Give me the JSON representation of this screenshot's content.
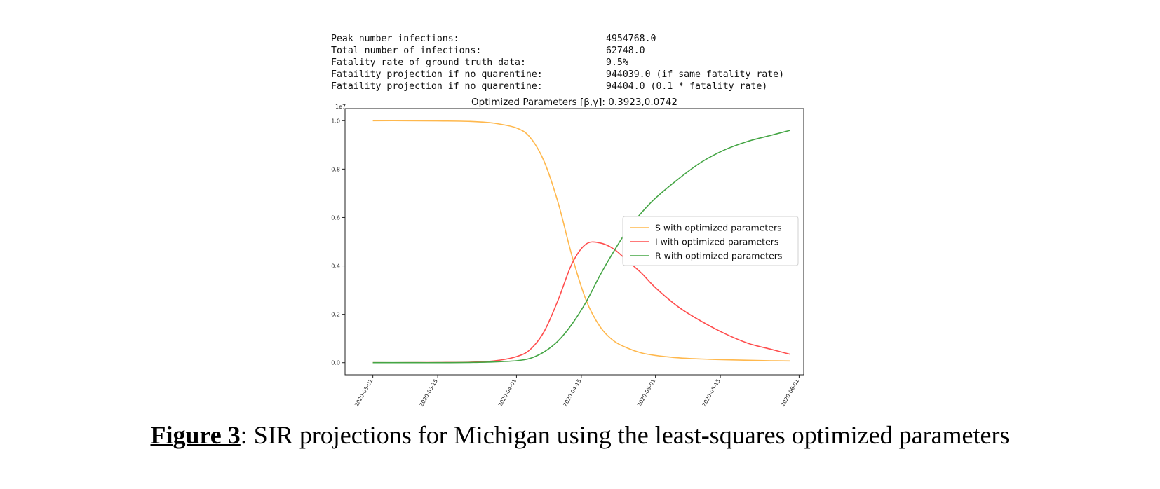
{
  "stats": [
    {
      "label": "Peak number infections:",
      "value": "4954768.0"
    },
    {
      "label": "Total number of infections:",
      "value": "62748.0"
    },
    {
      "label": "Fatality rate of ground truth data:",
      "value": "9.5%"
    },
    {
      "label": "Fataility projection if no quarentine:",
      "value": "944039.0 (if same fatality rate)"
    },
    {
      "label": "Fataility projection if no quarentine:",
      "value": "94404.0 (0.1 * fatality rate)"
    }
  ],
  "caption": {
    "figure_label": "Figure 3",
    "text": ": SIR projections for Michigan using the least-squares optimized parameters"
  },
  "chart_data": {
    "type": "line",
    "title": "Optimized Parameters [β,γ]: 0.3923,0.0742",
    "y_multiplier_label": "1e7",
    "xlabel": "",
    "ylabel": "",
    "xlim": [
      "2020-02-24",
      "2020-06-02"
    ],
    "ylim": [
      -0.05,
      1.05
    ],
    "y_ticks": [
      0.0,
      0.2,
      0.4,
      0.6,
      0.8,
      1.0
    ],
    "y_tick_labels": [
      "0.0",
      "0.2",
      "0.4",
      "0.6",
      "0.8",
      "1.0"
    ],
    "x_ticks": [
      "2020-03-01",
      "2020-03-15",
      "2020-04-01",
      "2020-04-15",
      "2020-05-01",
      "2020-05-15",
      "2020-06-01"
    ],
    "grid": false,
    "legend_position": "center-right",
    "series": [
      {
        "name": "S with optimized parameters",
        "color": "#ffb84d",
        "x": [
          "2020-03-01",
          "2020-03-08",
          "2020-03-15",
          "2020-03-22",
          "2020-03-27",
          "2020-04-01",
          "2020-04-04",
          "2020-04-07",
          "2020-04-10",
          "2020-04-13",
          "2020-04-16",
          "2020-04-19",
          "2020-04-22",
          "2020-04-25",
          "2020-04-28",
          "2020-05-01",
          "2020-05-06",
          "2020-05-11",
          "2020-05-16",
          "2020-05-21",
          "2020-05-26",
          "2020-05-30"
        ],
        "y": [
          1.0,
          1.0,
          0.999,
          0.997,
          0.99,
          0.97,
          0.93,
          0.83,
          0.66,
          0.44,
          0.26,
          0.15,
          0.09,
          0.06,
          0.04,
          0.03,
          0.02,
          0.015,
          0.012,
          0.01,
          0.008,
          0.007
        ]
      },
      {
        "name": "I with optimized parameters",
        "color": "#ff4d4d",
        "x": [
          "2020-03-01",
          "2020-03-08",
          "2020-03-15",
          "2020-03-22",
          "2020-03-27",
          "2020-04-01",
          "2020-04-04",
          "2020-04-07",
          "2020-04-10",
          "2020-04-13",
          "2020-04-16",
          "2020-04-19",
          "2020-04-22",
          "2020-04-25",
          "2020-04-28",
          "2020-05-01",
          "2020-05-06",
          "2020-05-11",
          "2020-05-16",
          "2020-05-21",
          "2020-05-26",
          "2020-05-30"
        ],
        "y": [
          0.0,
          0.0,
          0.0005,
          0.002,
          0.007,
          0.025,
          0.055,
          0.13,
          0.26,
          0.41,
          0.49,
          0.495,
          0.47,
          0.42,
          0.37,
          0.31,
          0.23,
          0.17,
          0.12,
          0.08,
          0.055,
          0.035
        ]
      },
      {
        "name": "R with optimized parameters",
        "color": "#44a544",
        "x": [
          "2020-03-01",
          "2020-03-08",
          "2020-03-15",
          "2020-03-22",
          "2020-03-27",
          "2020-04-01",
          "2020-04-04",
          "2020-04-07",
          "2020-04-10",
          "2020-04-13",
          "2020-04-16",
          "2020-04-19",
          "2020-04-22",
          "2020-04-25",
          "2020-04-28",
          "2020-05-01",
          "2020-05-06",
          "2020-05-11",
          "2020-05-16",
          "2020-05-21",
          "2020-05-26",
          "2020-05-30"
        ],
        "y": [
          0.0,
          0.0,
          0.0,
          0.001,
          0.003,
          0.008,
          0.018,
          0.045,
          0.09,
          0.16,
          0.25,
          0.36,
          0.46,
          0.55,
          0.62,
          0.68,
          0.76,
          0.83,
          0.88,
          0.915,
          0.94,
          0.96
        ]
      }
    ]
  }
}
